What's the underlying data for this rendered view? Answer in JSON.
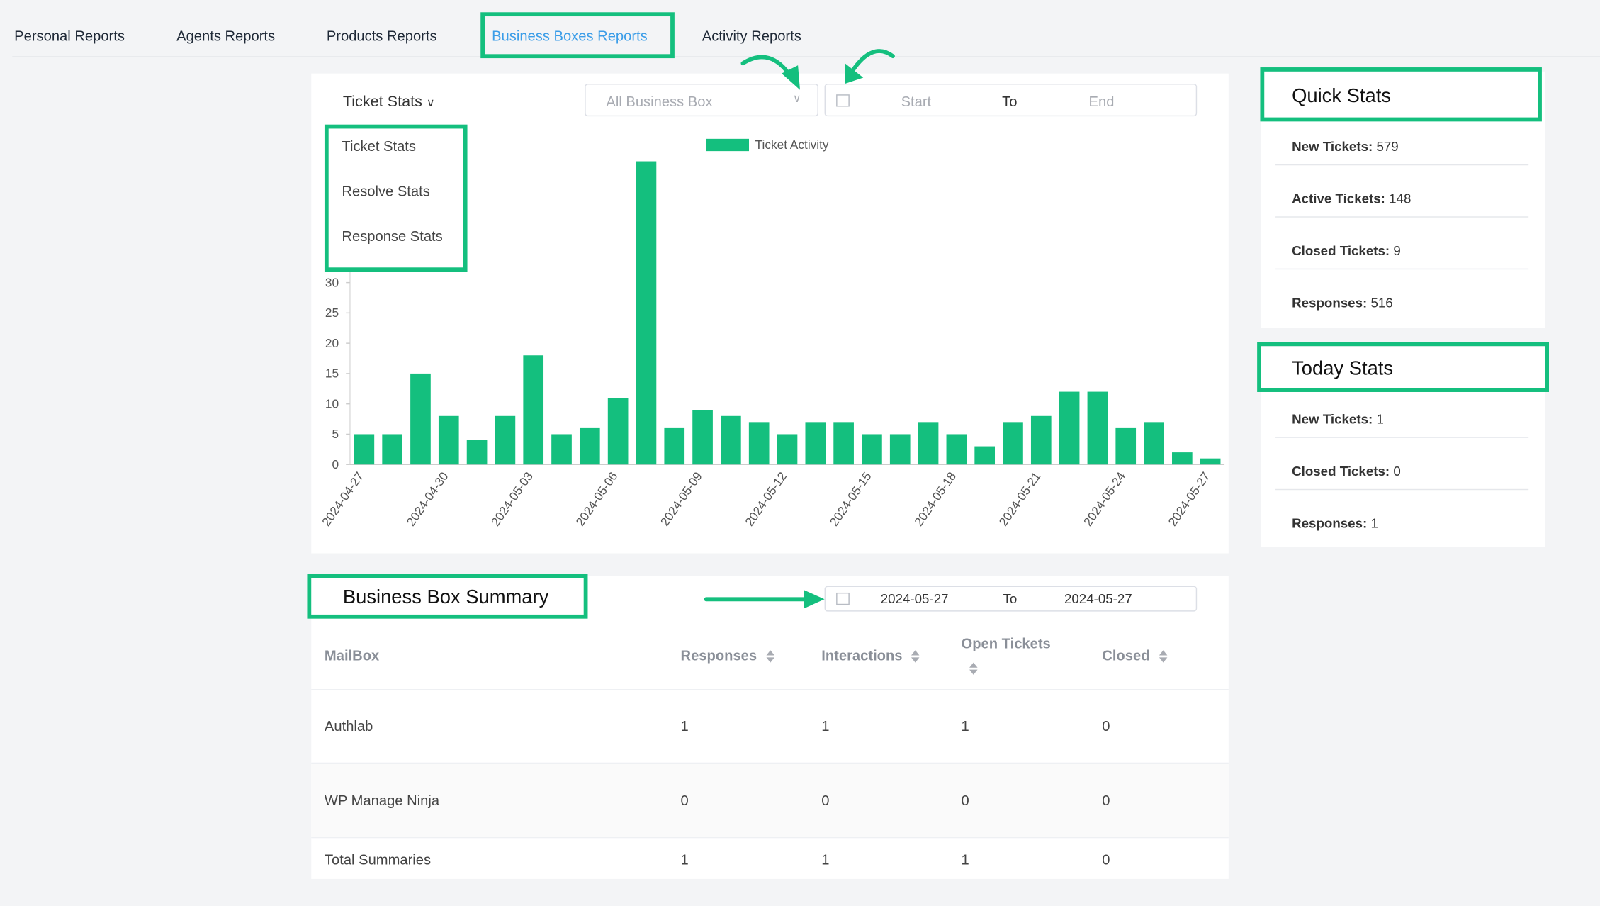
{
  "tabs": {
    "items": [
      "Personal Reports",
      "Agents Reports",
      "Products Reports",
      "Business Boxes Reports",
      "Activity Reports"
    ],
    "active": 3
  },
  "filters": {
    "stat_selector": "Ticket Stats",
    "stat_options": [
      "Ticket Stats",
      "Resolve Stats",
      "Response Stats"
    ],
    "box_select": "All Business Box",
    "start": "Start",
    "to": "To",
    "end": "End"
  },
  "chart_data": {
    "type": "bar",
    "legend": "Ticket Activity",
    "color": "#14bf7e",
    "categories": [
      "2024-04-27",
      null,
      null,
      "2024-04-30",
      null,
      null,
      "2024-05-03",
      null,
      null,
      "2024-05-06",
      null,
      null,
      "2024-05-09",
      null,
      null,
      "2024-05-12",
      null,
      null,
      "2024-05-15",
      null,
      null,
      "2024-05-18",
      null,
      null,
      "2024-05-21",
      null,
      null,
      "2024-05-24",
      null,
      null,
      "2024-05-27"
    ],
    "values": [
      5,
      5,
      15,
      8,
      4,
      8,
      18,
      5,
      6,
      11,
      50,
      6,
      9,
      8,
      7,
      5,
      7,
      7,
      5,
      5,
      7,
      5,
      3,
      7,
      8,
      12,
      12,
      6,
      7,
      2,
      1
    ],
    "ylim": [
      0,
      50
    ],
    "yticks": [
      0,
      5,
      10,
      15,
      20,
      25,
      30
    ]
  },
  "quick_stats": {
    "title": "Quick Stats",
    "items": [
      {
        "label": "New Tickets:",
        "value": 579
      },
      {
        "label": "Active Tickets:",
        "value": 148
      },
      {
        "label": "Closed Tickets:",
        "value": 9
      },
      {
        "label": "Responses:",
        "value": 516
      }
    ]
  },
  "today_stats": {
    "title": "Today Stats",
    "items": [
      {
        "label": "New Tickets:",
        "value": 1
      },
      {
        "label": "Closed Tickets:",
        "value": 0
      },
      {
        "label": "Responses:",
        "value": 1
      }
    ]
  },
  "summary": {
    "title": "Business Box Summary",
    "date_from": "2024-05-27",
    "to": "To",
    "date_to": "2024-05-27",
    "columns": [
      "MailBox",
      "Responses",
      "Interactions",
      "Open Tickets",
      "Closed"
    ],
    "rows": [
      [
        "Authlab",
        1,
        1,
        1,
        0
      ],
      [
        "WP Manage Ninja",
        0,
        0,
        0,
        0
      ],
      [
        "Total Summaries",
        1,
        1,
        1,
        0
      ]
    ]
  }
}
